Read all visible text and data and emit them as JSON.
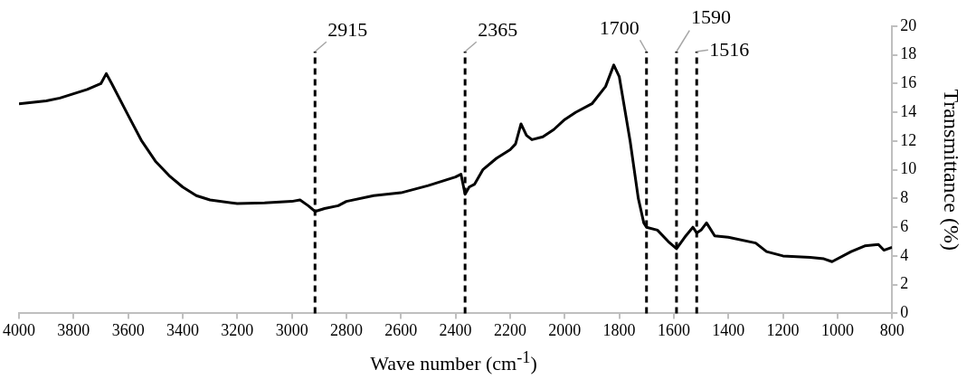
{
  "chart_data": {
    "type": "line",
    "xlabel": "Wave number (cm$^{-1}$)",
    "ylabel": "Transmittance (%)",
    "x": [
      4000,
      3900,
      3850,
      3800,
      3750,
      3700,
      3680,
      3660,
      3600,
      3550,
      3500,
      3450,
      3400,
      3350,
      3300,
      3200,
      3100,
      3000,
      2970,
      2940,
      2915,
      2880,
      2830,
      2800,
      2700,
      2600,
      2500,
      2400,
      2380,
      2365,
      2350,
      2330,
      2300,
      2250,
      2200,
      2180,
      2160,
      2140,
      2120,
      2080,
      2040,
      2000,
      1960,
      1900,
      1850,
      1820,
      1800,
      1760,
      1730,
      1710,
      1700,
      1660,
      1620,
      1590,
      1560,
      1530,
      1516,
      1500,
      1480,
      1450,
      1400,
      1300,
      1260,
      1200,
      1100,
      1050,
      1020,
      950,
      900,
      850,
      830,
      800
    ],
    "series": [
      {
        "color": "#000000",
        "values": [
          14.6,
          14.8,
          15.0,
          15.3,
          15.6,
          16.0,
          16.7,
          16.0,
          13.8,
          12.0,
          10.6,
          9.6,
          8.8,
          8.2,
          7.9,
          7.65,
          7.7,
          7.8,
          7.9,
          7.5,
          7.1,
          7.3,
          7.5,
          7.8,
          8.2,
          8.4,
          8.9,
          9.5,
          9.7,
          8.3,
          8.8,
          9.0,
          10.0,
          10.8,
          11.4,
          11.8,
          13.2,
          12.4,
          12.1,
          12.3,
          12.8,
          13.5,
          14.0,
          14.6,
          15.8,
          17.3,
          16.5,
          12.0,
          8.0,
          6.3,
          6.0,
          5.8,
          5.0,
          4.5,
          5.3,
          6.0,
          5.6,
          5.8,
          6.3,
          5.4,
          5.3,
          4.9,
          4.3,
          4.0,
          3.9,
          3.8,
          3.6,
          4.3,
          4.7,
          4.8,
          4.4,
          4.6
        ]
      }
    ],
    "xlim": [
      4000,
      800
    ],
    "xticks": [
      4000,
      3800,
      3600,
      3400,
      3200,
      3000,
      2800,
      2600,
      2400,
      2200,
      2000,
      1800,
      1600,
      1400,
      1200,
      1000,
      800
    ],
    "ylim": [
      0,
      20
    ],
    "yticks": [
      0,
      2,
      4,
      6,
      8,
      10,
      12,
      14,
      16,
      18,
      20
    ],
    "ref_lines": [
      {
        "axis": "x",
        "value": 2915,
        "label": "2915",
        "color": "#000000",
        "line_style": "dashed"
      },
      {
        "axis": "x",
        "value": 2365,
        "label": "2365",
        "color": "#000000",
        "line_style": "dashed"
      },
      {
        "axis": "x",
        "value": 1700,
        "label": "1700",
        "color": "#000000",
        "line_style": "dashed"
      },
      {
        "axis": "x",
        "value": 1590,
        "label": "1590",
        "color": "#000000",
        "line_style": "dashed"
      },
      {
        "axis": "x",
        "value": 1516,
        "label": "1516",
        "color": "#000000",
        "line_style": "dashed"
      }
    ],
    "grid": false,
    "legend": false,
    "marker": "none",
    "line_style": "solid"
  }
}
